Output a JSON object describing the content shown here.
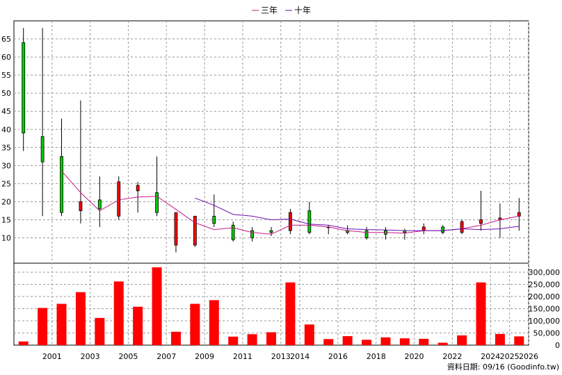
{
  "legend": [
    {
      "name": "三年",
      "color": "#c71585"
    },
    {
      "name": "十年",
      "color": "#6a0dad"
    }
  ],
  "footer": "資料日期: 09/16 (Goodinfo.tw)",
  "colors": {
    "up": "#ff0000",
    "down": "#00cc00",
    "grid": "#999999",
    "volume": "#ff0000"
  },
  "chart_data": [
    {
      "type": "candlestick",
      "x": [
        "2000",
        "2001",
        "2002",
        "2003",
        "2004",
        "2005",
        "2006",
        "2007",
        "2008",
        "2009",
        "2010",
        "2011",
        "2012",
        "2013",
        "2014",
        "2015",
        "2016",
        "2017",
        "2018",
        "2019",
        "2020",
        "2021",
        "2022",
        "2023",
        "2024",
        "2025",
        "2026"
      ],
      "x_tick_labels": [
        "2001",
        "2003",
        "2005",
        "2007",
        "2009",
        "2011",
        "2013",
        "2014",
        "2016",
        "2018",
        "2020",
        "2022",
        "2024",
        "2025",
        "2026"
      ],
      "open": [
        64,
        38,
        32.5,
        17.5,
        20.5,
        16,
        23,
        22.5,
        8,
        8,
        16,
        13.5,
        12,
        12,
        12,
        17.5,
        13,
        12,
        12,
        12,
        12,
        12,
        13,
        11.5,
        14,
        15,
        16
      ],
      "high": [
        68,
        68,
        43,
        48,
        27,
        27,
        25.5,
        32.5,
        17,
        16,
        22,
        14.5,
        13,
        13,
        18,
        20,
        13.5,
        13.5,
        13,
        13,
        12.5,
        14,
        13.5,
        15,
        23,
        19.5,
        21
      ],
      "low": [
        34,
        16,
        16,
        14,
        13,
        15,
        17,
        16,
        6,
        7.5,
        13,
        9,
        9,
        10.5,
        11,
        11,
        11,
        11,
        9.5,
        9.5,
        9.5,
        11,
        11,
        11,
        12,
        10,
        12
      ],
      "close": [
        39,
        31,
        17,
        20,
        18,
        25.5,
        24.5,
        17,
        17,
        16,
        14,
        9.5,
        10,
        11.5,
        17,
        11.5,
        13,
        11.5,
        10,
        11,
        11.5,
        13,
        11.5,
        14.5,
        15,
        15.5,
        17
      ],
      "series": [
        {
          "name": "三年",
          "values": [
            null,
            null,
            28.5,
            22.5,
            17.5,
            20.5,
            21.3,
            21.5,
            null,
            14.2,
            12.3,
            12.8,
            11.5,
            11,
            13.5,
            13.5,
            13,
            12,
            11.5,
            11.5,
            11.3,
            12,
            12,
            12.5,
            13.5,
            15,
            16
          ]
        },
        {
          "name": "十年",
          "values": [
            null,
            null,
            null,
            null,
            null,
            null,
            null,
            null,
            null,
            21,
            19,
            16.5,
            16,
            15,
            15.2,
            13.8,
            13.5,
            12.5,
            12.3,
            12.2,
            12,
            12,
            12,
            12.5,
            12.3,
            12.5,
            13.2
          ]
        }
      ],
      "ylim": [
        3,
        70
      ],
      "y_ticks": [
        10,
        15,
        20,
        25,
        30,
        35,
        40,
        45,
        50,
        55,
        60,
        65
      ]
    },
    {
      "type": "bar",
      "x": [
        "2000",
        "2001",
        "2002",
        "2003",
        "2004",
        "2005",
        "2006",
        "2007",
        "2008",
        "2009",
        "2010",
        "2011",
        "2012",
        "2013",
        "2014",
        "2015",
        "2016",
        "2017",
        "2018",
        "2019",
        "2020",
        "2021",
        "2022",
        "2023",
        "2024",
        "2025",
        "2026"
      ],
      "values": [
        15000,
        153000,
        170000,
        218000,
        112000,
        262000,
        158000,
        320000,
        55000,
        170000,
        185000,
        35000,
        45000,
        53000,
        258000,
        85000,
        25000,
        37000,
        22000,
        32000,
        28000,
        26000,
        10000,
        40000,
        258000,
        46000,
        36000
      ],
      "ylim": [
        0,
        320000
      ],
      "y_tick_labels": [
        "300,000",
        "250,000",
        "200,000",
        "150,000",
        "100,000",
        "50,000",
        "0"
      ]
    }
  ]
}
